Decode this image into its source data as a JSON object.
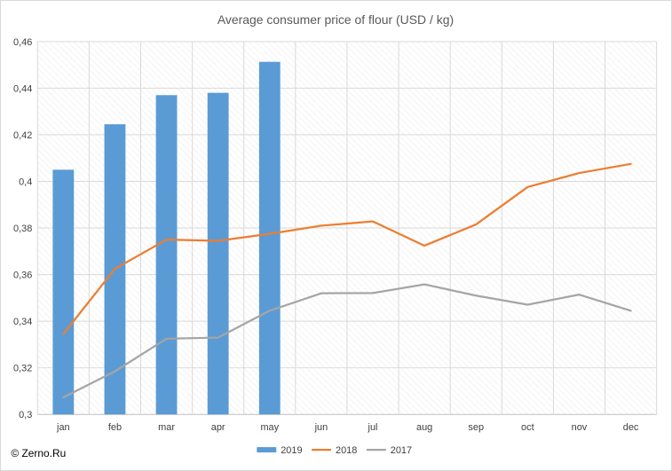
{
  "chart_data": {
    "type": "bar",
    "title": "Average consumer price of flour (USD / kg)",
    "categories": [
      "jan",
      "feb",
      "mar",
      "apr",
      "may",
      "jun",
      "jul",
      "aug",
      "sep",
      "oct",
      "nov",
      "dec"
    ],
    "y_ticks": [
      "0,3",
      "0,32",
      "0,34",
      "0,36",
      "0,38",
      "0,4",
      "0,42",
      "0,44",
      "0,46"
    ],
    "ylim": [
      0.3,
      0.46
    ],
    "grid": true,
    "legend_position": "bottom",
    "series": [
      {
        "name": "2019",
        "type": "bar",
        "color": "#5b9bd5",
        "values": [
          0.405,
          0.4245,
          0.437,
          0.438,
          0.4513,
          null,
          null,
          null,
          null,
          null,
          null,
          null
        ]
      },
      {
        "name": "2018",
        "type": "line",
        "color": "#ed7d31",
        "values": [
          0.3345,
          0.3625,
          0.375,
          0.3745,
          0.3775,
          0.381,
          0.3828,
          0.3724,
          0.3815,
          0.3976,
          0.4036,
          0.4075
        ]
      },
      {
        "name": "2017",
        "type": "line",
        "color": "#a5a5a5",
        "values": [
          0.3073,
          0.3185,
          0.3325,
          0.333,
          0.3445,
          0.352,
          0.3521,
          0.3558,
          0.351,
          0.3471,
          0.3514,
          0.3445
        ]
      }
    ]
  },
  "copyright": "© Zerno.Ru"
}
